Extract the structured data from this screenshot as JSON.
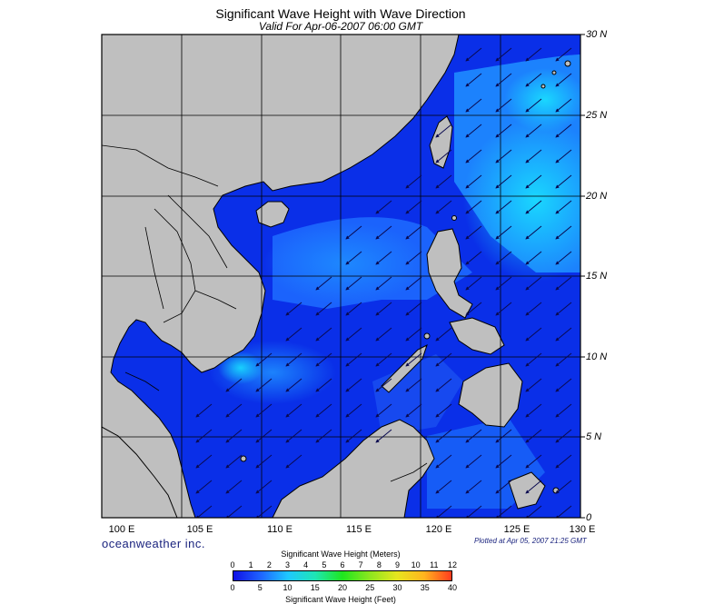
{
  "title": "Significant Wave Height with Wave Direction",
  "subtitle": "Valid For Apr-06-2007 06:00 GMT",
  "map": {
    "lat_range": [
      0,
      30
    ],
    "lon_range": [
      100,
      130
    ],
    "lat_labels": [
      "30 N",
      "25 N",
      "20 N",
      "15 N",
      "10 N",
      "5 N",
      "0"
    ],
    "lon_labels": [
      "100 E",
      "105 E",
      "110 E",
      "115 E",
      "120 E",
      "125 E",
      "130 E"
    ],
    "wave_direction": "arrows point toward the southwest",
    "colors": {
      "land": "#bfbfbf",
      "coast": "#000000",
      "grid": "#000000",
      "low_wave": "#0a2fe8",
      "mid_wave": "#1e8cff",
      "high_wave": "#19e6ff",
      "arrow": "#0a0a50"
    }
  },
  "branding": "oceanweather inc.",
  "plotted": "Plotted at Apr 05, 2007 21:25 GMT",
  "colorbar": {
    "top_title": "Significant Wave Height (Meters)",
    "bottom_title": "Significant Wave Height (Feet)",
    "meters": [
      "0",
      "1",
      "2",
      "3",
      "4",
      "5",
      "6",
      "7",
      "8",
      "9",
      "10",
      "11",
      "12"
    ],
    "feet": [
      "0",
      "5",
      "10",
      "15",
      "20",
      "25",
      "30",
      "35",
      "40"
    ],
    "gradient": [
      "#1010e6",
      "#1e64ff",
      "#1ec8ff",
      "#1ee6b4",
      "#1ee61e",
      "#8ce61e",
      "#e6e61e",
      "#ffb41e",
      "#ff3c1e"
    ]
  }
}
